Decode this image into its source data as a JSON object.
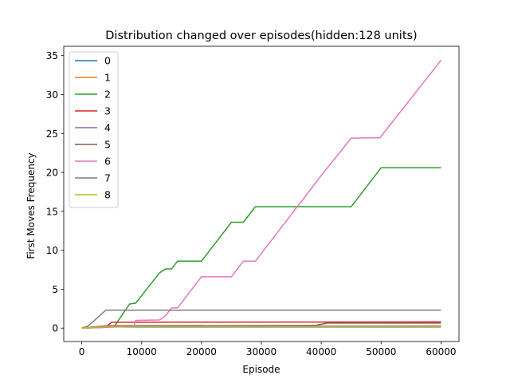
{
  "chart_data": {
    "type": "line",
    "title": "Distribution changed over episodes(hidden:128 units)",
    "xlabel": "Episode",
    "ylabel": "First Moves Frequency",
    "xlim": [
      -3000,
      63000
    ],
    "ylim": [
      -1.72,
      36.2
    ],
    "xticks": [
      0,
      10000,
      20000,
      30000,
      40000,
      50000,
      60000
    ],
    "xtick_labels": [
      "0",
      "10000",
      "20000",
      "30000",
      "40000",
      "50000",
      "60000"
    ],
    "yticks": [
      0,
      5,
      10,
      15,
      20,
      25,
      30,
      35
    ],
    "ytick_labels": [
      "0",
      "5",
      "10",
      "15",
      "20",
      "25",
      "30",
      "35"
    ],
    "grid": false,
    "legend": "top-left",
    "series": [
      {
        "name": "0",
        "color": "#1f77b4",
        "x": [
          0,
          2000,
          4000,
          60000
        ],
        "y": [
          0,
          0.12,
          0.15,
          0.15
        ]
      },
      {
        "name": "1",
        "color": "#ff7f0e",
        "x": [
          0,
          2000,
          4000,
          60000
        ],
        "y": [
          0,
          0.15,
          0.2,
          0.2
        ]
      },
      {
        "name": "2",
        "color": "#2ca02c",
        "x": [
          0,
          4000,
          5500,
          8000,
          9000,
          13000,
          14000,
          15000,
          16000,
          20000,
          25000,
          27000,
          29000,
          45000,
          50000,
          60000
        ],
        "y": [
          0,
          0.1,
          0.3,
          3.1,
          3.2,
          7.1,
          7.6,
          7.6,
          8.6,
          8.6,
          13.6,
          13.6,
          15.6,
          15.6,
          20.6,
          20.6
        ]
      },
      {
        "name": "3",
        "color": "#d62728",
        "x": [
          0,
          4000,
          5000,
          60000
        ],
        "y": [
          0,
          0.1,
          0.75,
          0.8
        ]
      },
      {
        "name": "4",
        "color": "#9467bd",
        "x": [
          0,
          4000,
          60000
        ],
        "y": [
          0,
          0.25,
          0.3
        ]
      },
      {
        "name": "5",
        "color": "#8c564b",
        "x": [
          0,
          4000,
          39000,
          41000,
          60000
        ],
        "y": [
          0,
          0.3,
          0.35,
          0.65,
          0.65
        ]
      },
      {
        "name": "6",
        "color": "#e377c2",
        "x": [
          0,
          4000,
          8700,
          9000,
          13000,
          14000,
          15000,
          16000,
          20000,
          25000,
          27000,
          29000,
          39000,
          40000,
          45000,
          49800,
          60000
        ],
        "y": [
          0,
          0.1,
          0.2,
          1.0,
          1.05,
          1.6,
          2.6,
          2.6,
          6.6,
          6.6,
          8.6,
          8.6,
          18.6,
          19.6,
          24.4,
          24.45,
          34.4
        ]
      },
      {
        "name": "7",
        "color": "#7f7f7f",
        "x": [
          0,
          1000,
          2000,
          3000,
          4000,
          60000
        ],
        "y": [
          0,
          0.25,
          0.9,
          1.6,
          2.3,
          2.3
        ]
      },
      {
        "name": "8",
        "color": "#bcbd22",
        "x": [
          0,
          4000,
          60000
        ],
        "y": [
          0,
          0.2,
          0.25
        ]
      }
    ]
  }
}
